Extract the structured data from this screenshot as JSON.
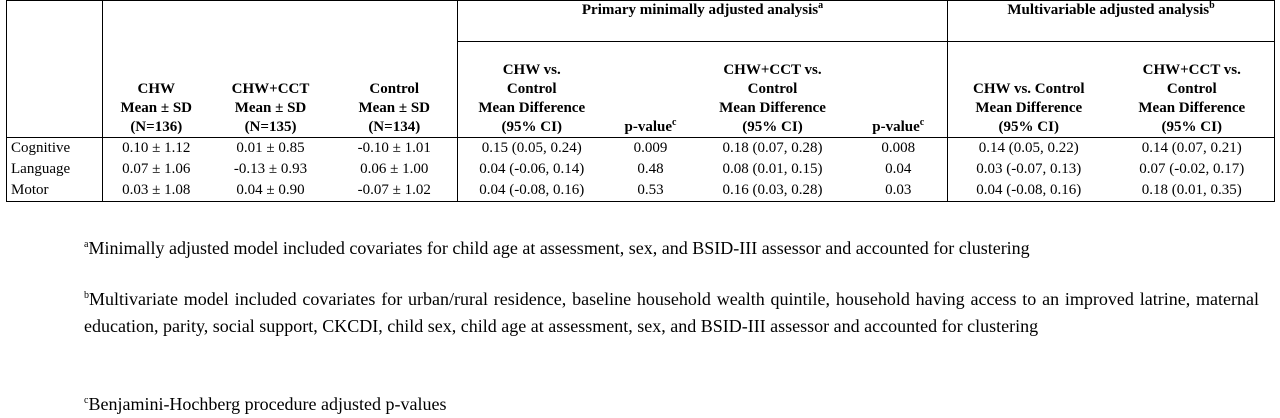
{
  "table": {
    "group_headers": {
      "primary": "Primary minimally adjusted analysis",
      "primary_sup": "a",
      "multivariable": "Multivariable adjusted analysis",
      "multivariable_sup": "b"
    },
    "columns": [
      {
        "l1": "CHW",
        "l2": "Mean ± SD",
        "l3": "(N=136)"
      },
      {
        "l1": "CHW+CCT",
        "l2": "Mean ± SD",
        "l3": "(N=135)"
      },
      {
        "l1": "Control",
        "l2": "Mean ± SD",
        "l3": "(N=134)"
      },
      {
        "l1": "CHW vs.",
        "l2": "Control",
        "l3": "Mean Difference",
        "l4": "(95% CI)"
      },
      {
        "l1": "p-value",
        "sup": "c"
      },
      {
        "l1": "CHW+CCT vs.",
        "l2": "Control",
        "l3": "Mean Difference",
        "l4": "(95% CI)"
      },
      {
        "l1": "p-value",
        "sup": "c"
      },
      {
        "l1": "CHW vs. Control",
        "l2": "Mean Difference",
        "l3": "(95% CI)"
      },
      {
        "l1": "CHW+CCT vs.",
        "l2": "Control",
        "l3": "Mean Difference",
        "l4": "(95% CI)"
      }
    ],
    "rows": [
      {
        "label": "Cognitive",
        "cells": [
          "0.10 ± 1.12",
          "0.01 ± 0.85",
          "-0.10 ± 1.01",
          "0.15 (0.05, 0.24)",
          "0.009",
          "0.18 (0.07, 0.28)",
          "0.008",
          "0.14 (0.05, 0.22)",
          "0.14 (0.07, 0.21)"
        ]
      },
      {
        "label": "Language",
        "cells": [
          "0.07 ± 1.06",
          "-0.13 ± 0.93",
          "0.06 ± 1.00",
          "0.04 (-0.06, 0.14)",
          "0.48",
          "0.08 (0.01, 0.15)",
          "0.04",
          "0.03 (-0.07, 0.13)",
          "0.07 (-0.02, 0.17)"
        ]
      },
      {
        "label": "Motor",
        "cells": [
          "0.03 ± 1.08",
          "0.04 ± 0.90",
          "-0.07 ± 1.02",
          "0.04 (-0.08, 0.16)",
          "0.53",
          "0.16 (0.03, 0.28)",
          "0.03",
          "0.04 (-0.08, 0.16)",
          "0.18 (0.01, 0.35)"
        ]
      }
    ]
  },
  "footnotes": [
    {
      "mark": "a",
      "text": "Minimally adjusted model included covariates for child age at assessment, sex, and BSID-III assessor and accounted for clustering"
    },
    {
      "mark": "b",
      "text": "Multivariate model included covariates for urban/rural residence, baseline household wealth quintile, household having access to an improved latrine, maternal education, parity, social support, CKCDI, child sex, child age at assessment, sex, and BSID-III assessor and accounted for clustering"
    },
    {
      "mark": "c",
      "text": "Benjamini-Hochberg procedure adjusted p-values"
    }
  ]
}
